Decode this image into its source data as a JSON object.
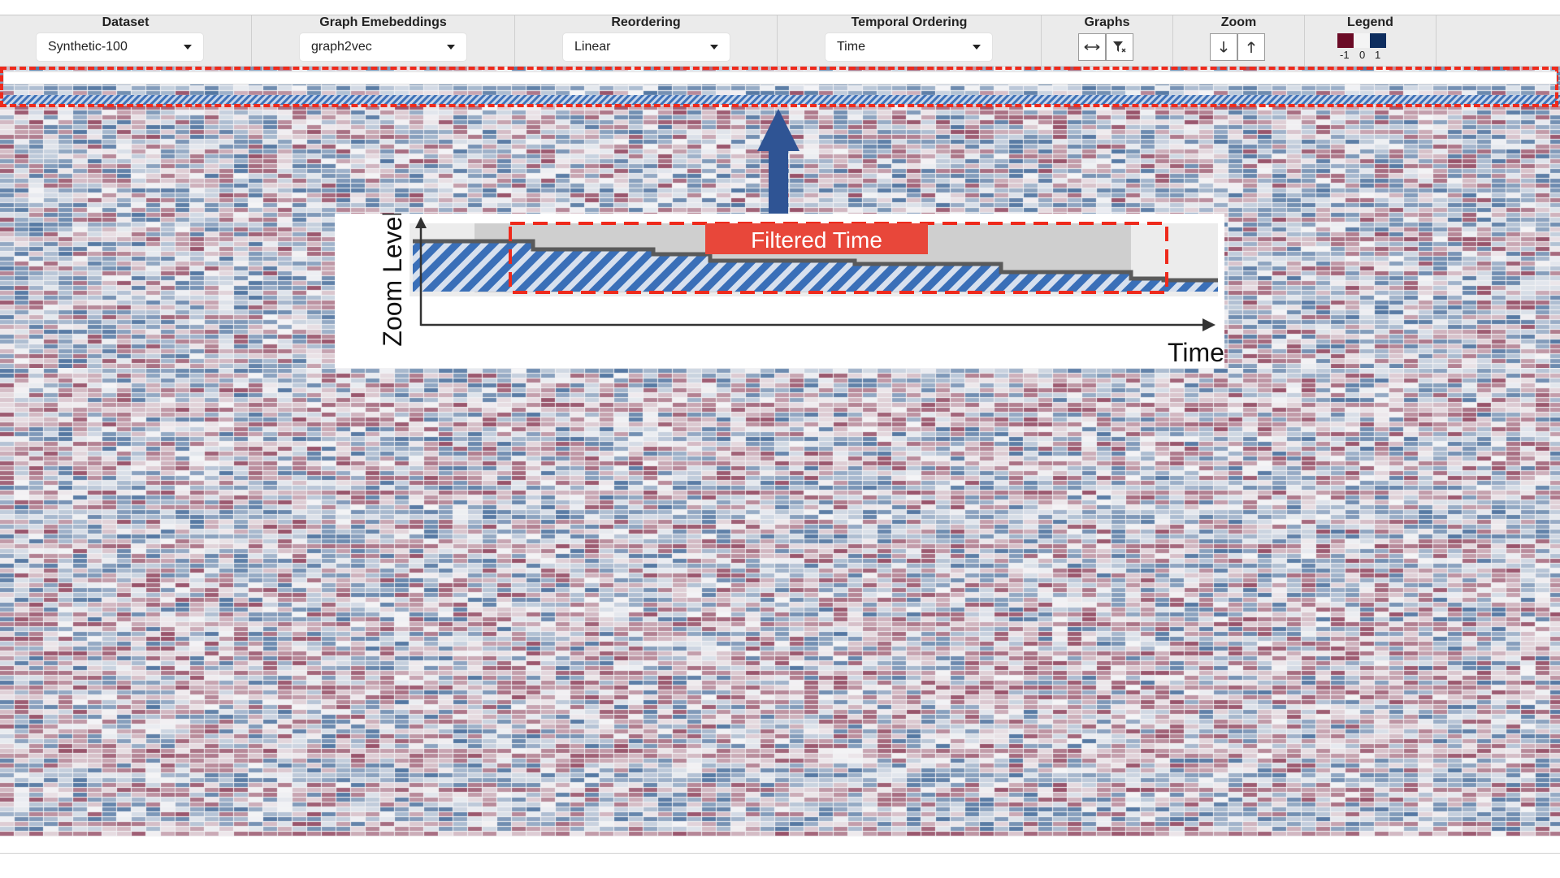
{
  "toolbar": {
    "dataset": {
      "label": "Dataset",
      "value": "Synthetic-100"
    },
    "embeddings": {
      "label": "Graph Emebeddings",
      "value": "graph2vec"
    },
    "reordering": {
      "label": "Reordering",
      "value": "Linear"
    },
    "temporal": {
      "label": "Temporal Ordering",
      "value": "Time"
    },
    "graphs": {
      "label": "Graphs",
      "buttons": [
        "expand-horizontal-icon",
        "filter-icon"
      ]
    },
    "zoom": {
      "label": "Zoom",
      "buttons": [
        "arrow-down-icon",
        "arrow-up-icon"
      ]
    },
    "legend": {
      "label": "Legend",
      "ticks": [
        "-1",
        "0",
        "1"
      ],
      "colors": [
        "#6b0b26",
        "#f4f4f4",
        "#0d2d5e"
      ]
    }
  },
  "inset": {
    "badge": "Filtered Time",
    "y_axis": "Zoom Level",
    "x_axis": "Time"
  },
  "colors": {
    "negative": "#7a1e3c",
    "positive": "#1f4e86",
    "highlight": "#ee2a1c",
    "arrow": "#2f5494",
    "hatch": "#3f72b8"
  }
}
